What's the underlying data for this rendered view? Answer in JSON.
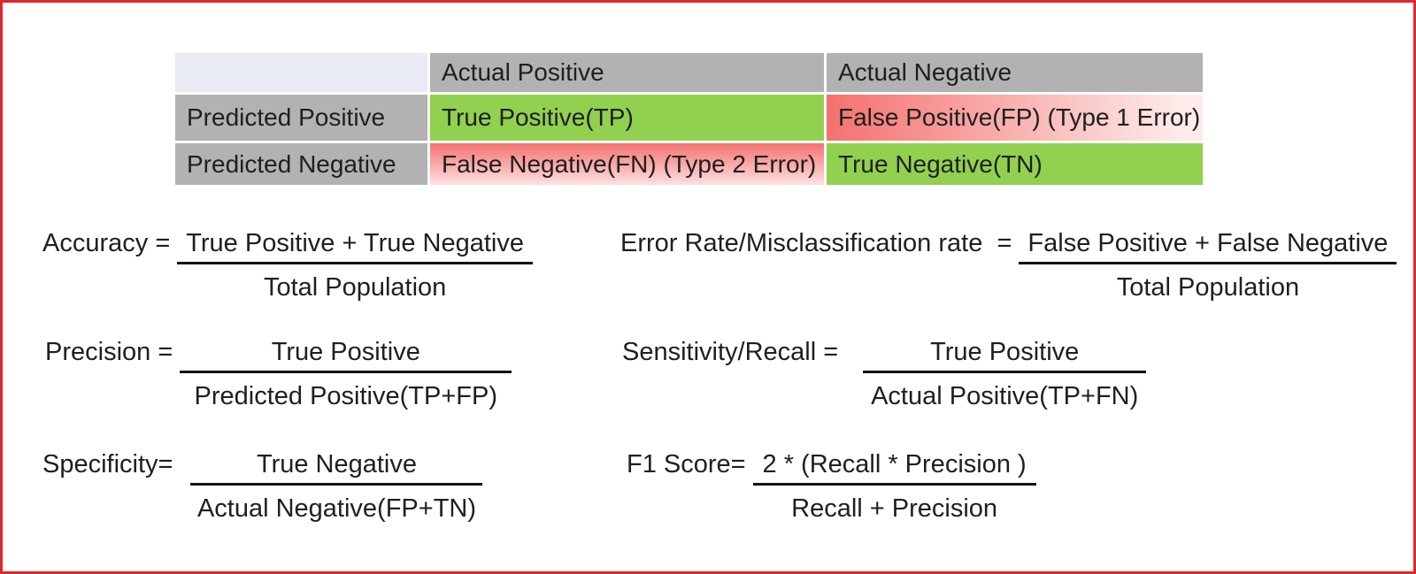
{
  "colors": {
    "border_red": "#e2262b",
    "header_bg": "#b2b2b2",
    "corner_bg": "#e9ebf5",
    "good_bg": "#92d050",
    "bad_start": "#f4716f",
    "bad_end": "#fdeceb",
    "text": "#1f1f1f"
  },
  "confusion_matrix": {
    "corner_label": "",
    "column_headers": [
      "Actual Positive",
      "Actual Negative"
    ],
    "rows": [
      {
        "header": "Predicted Positive",
        "cells": [
          {
            "label": "True Positive(TP)",
            "status": "good"
          },
          {
            "label": "False Positive(FP) (Type 1 Error)",
            "status": "bad"
          }
        ]
      },
      {
        "header": "Predicted Negative",
        "cells": [
          {
            "label": "False Negative(FN) (Type 2 Error)",
            "status": "bad"
          },
          {
            "label": "True Negative(TN)",
            "status": "good"
          }
        ]
      }
    ]
  },
  "formulas": [
    {
      "id": "accuracy",
      "label": "Accuracy =",
      "numerator": "True Positive + True Negative",
      "denominator": "Total Population"
    },
    {
      "id": "error-rate",
      "label": "Error Rate/Misclassification rate  =",
      "numerator": "False Positive + False Negative",
      "denominator": "Total Population"
    },
    {
      "id": "precision",
      "label": "Precision =",
      "numerator": "True Positive",
      "denominator": "Predicted Positive(TP+FP)"
    },
    {
      "id": "sensitivity",
      "label": "Sensitivity/Recall =",
      "numerator": "True Positive",
      "denominator": "Actual Positive(TP+FN)"
    },
    {
      "id": "specificity",
      "label": "Specificity=",
      "numerator": "True Negative",
      "denominator": "Actual Negative(FP+TN)"
    },
    {
      "id": "f1",
      "label": "F1 Score=",
      "numerator": "2 * (Recall * Precision )",
      "denominator": "Recall + Precision"
    }
  ]
}
